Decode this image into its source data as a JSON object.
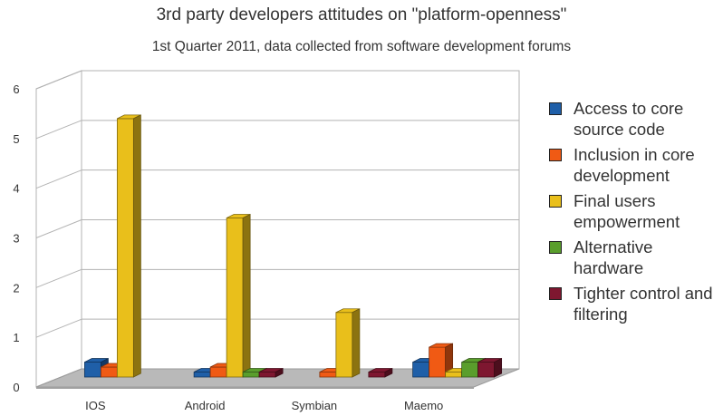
{
  "chart_data": {
    "type": "bar",
    "title": "3rd party developers attitudes on \"platform-openness\"",
    "subtitle": "1st Quarter 2011, data collected from software development forums",
    "categories": [
      "IOS",
      "Android",
      "Symbian",
      "Maemo"
    ],
    "ylim": [
      0,
      6
    ],
    "yticks": [
      "0",
      "1",
      "2",
      "3",
      "4",
      "5",
      "6"
    ],
    "grid": true,
    "legend_position": "right",
    "series": [
      {
        "name": "Access to core source code",
        "color": "#1f5fa8",
        "values": [
          0.3,
          0.1,
          0,
          0.3
        ]
      },
      {
        "name": "Inclusion in core development",
        "color": "#f05a14",
        "values": [
          0.2,
          0.2,
          0.1,
          0.6
        ]
      },
      {
        "name": "Final users empowerment",
        "color": "#e9bf1b",
        "values": [
          5.2,
          3.2,
          1.3,
          0.1
        ]
      },
      {
        "name": "Alternative hardware",
        "color": "#5a9e2c",
        "values": [
          0,
          0.1,
          0,
          0.3
        ]
      },
      {
        "name": "Tighter control and filtering",
        "color": "#7e1730",
        "values": [
          0,
          0.1,
          0.1,
          0.3
        ]
      }
    ]
  }
}
